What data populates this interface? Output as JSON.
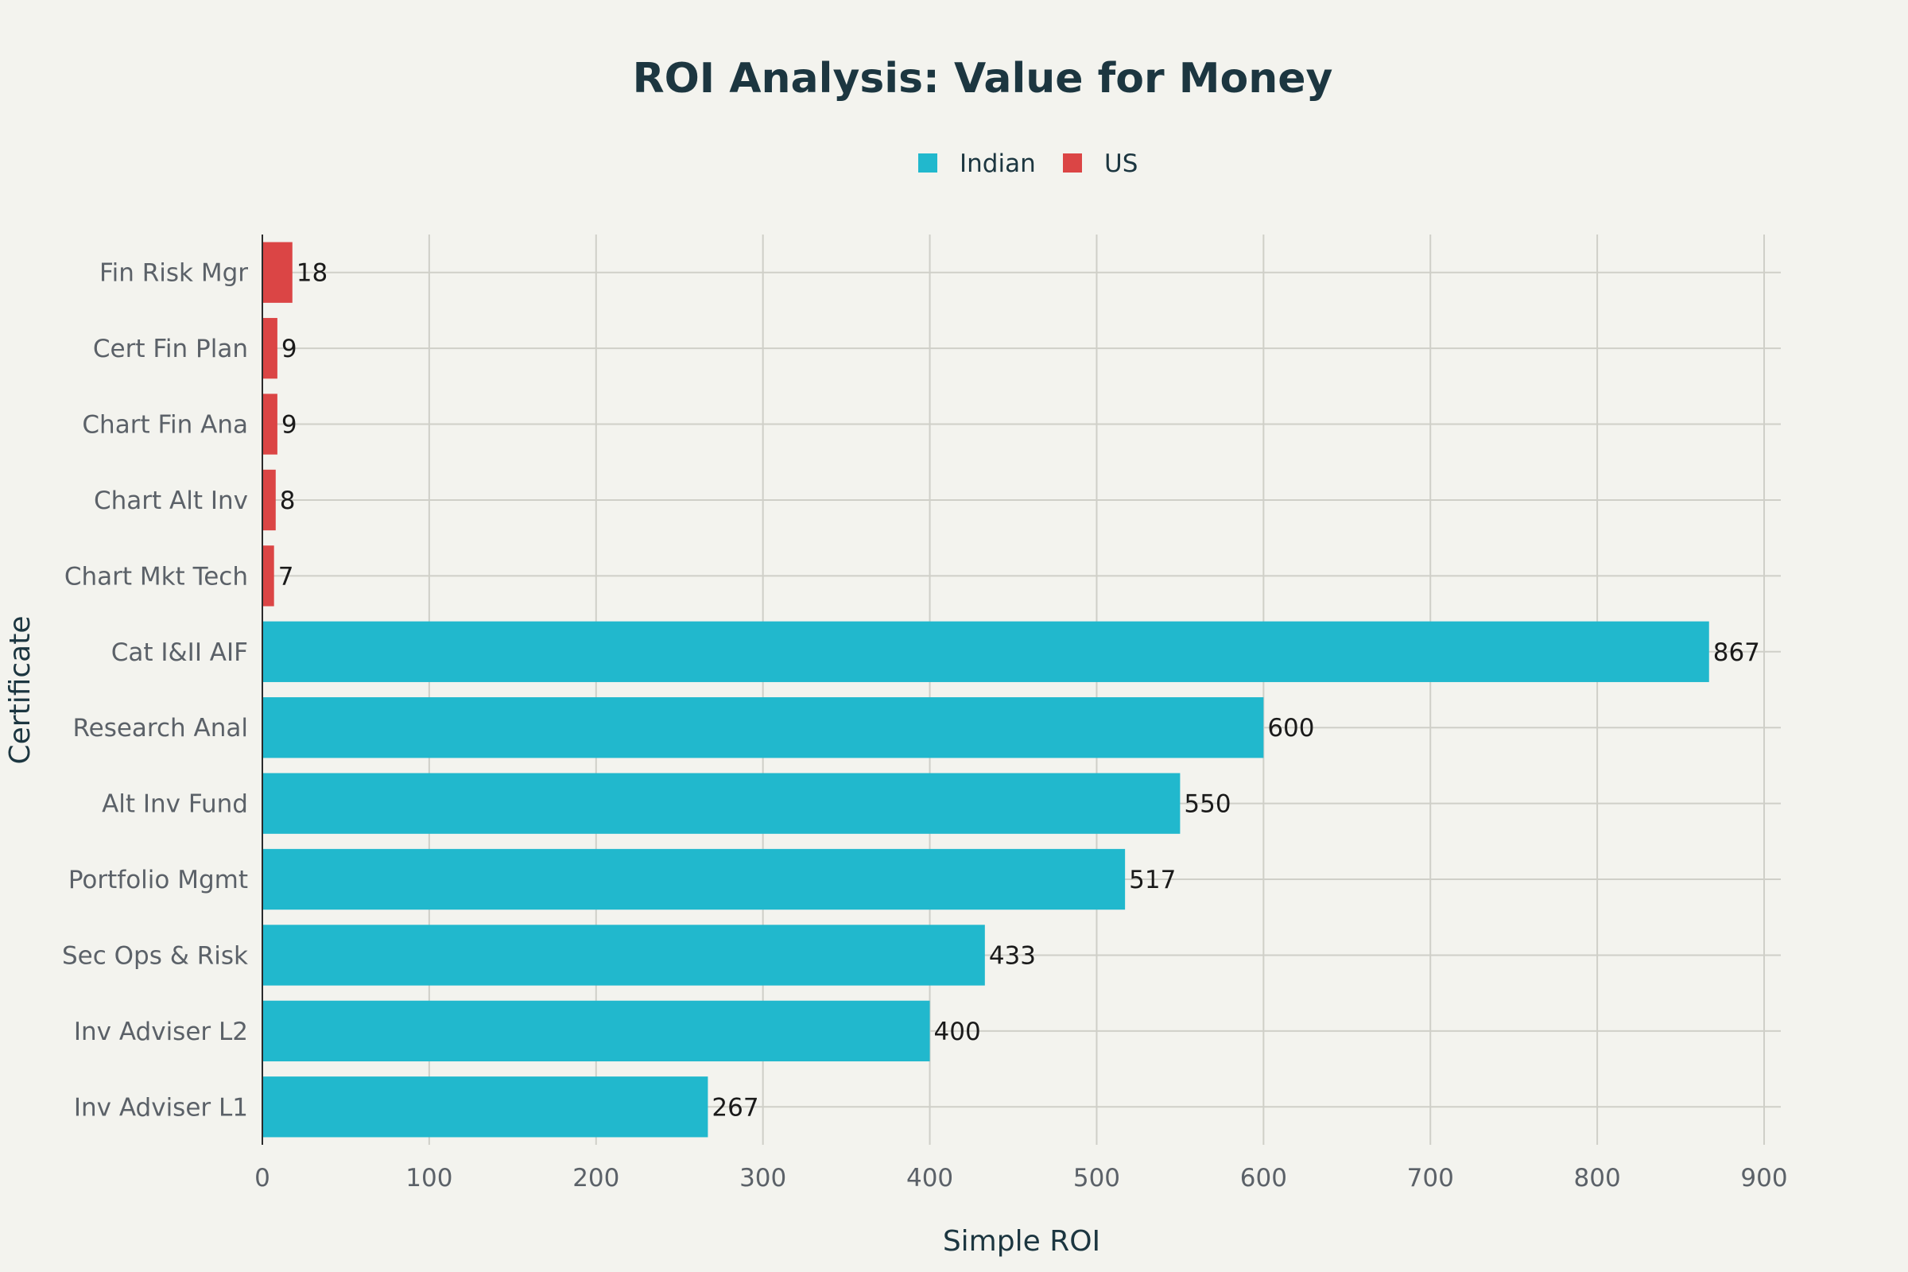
{
  "colors": {
    "background": "#f3f3ee",
    "indian": "#21b8cd",
    "us": "#db4545",
    "text_dark": "#1c3640",
    "text_muted": "#5b6168"
  },
  "chart_data": {
    "type": "bar",
    "orientation": "horizontal",
    "title": "ROI Analysis: Value for Money",
    "xlabel": "Simple ROI",
    "ylabel": "Certificate",
    "xlim": [
      0,
      910
    ],
    "xticks": [
      0,
      100,
      200,
      300,
      400,
      500,
      600,
      700,
      800,
      900
    ],
    "grid": true,
    "legend_position": "top-center",
    "legend": [
      {
        "name": "Indian",
        "color": "#21b8cd"
      },
      {
        "name": "US",
        "color": "#db4545"
      }
    ],
    "bars": [
      {
        "category": "Fin Risk Mgr",
        "value": 18,
        "series": "US"
      },
      {
        "category": "Cert Fin Plan",
        "value": 9,
        "series": "US"
      },
      {
        "category": "Chart Fin Ana",
        "value": 9,
        "series": "US"
      },
      {
        "category": "Chart Alt Inv",
        "value": 8,
        "series": "US"
      },
      {
        "category": "Chart Mkt Tech",
        "value": 7,
        "series": "US"
      },
      {
        "category": "Cat I&II AIF",
        "value": 867,
        "series": "Indian"
      },
      {
        "category": "Research Anal",
        "value": 600,
        "series": "Indian"
      },
      {
        "category": "Alt Inv Fund",
        "value": 550,
        "series": "Indian"
      },
      {
        "category": "Portfolio Mgmt",
        "value": 517,
        "series": "Indian"
      },
      {
        "category": "Sec Ops & Risk",
        "value": 433,
        "series": "Indian"
      },
      {
        "category": "Inv Adviser L2",
        "value": 400,
        "series": "Indian"
      },
      {
        "category": "Inv Adviser L1",
        "value": 267,
        "series": "Indian"
      }
    ]
  }
}
